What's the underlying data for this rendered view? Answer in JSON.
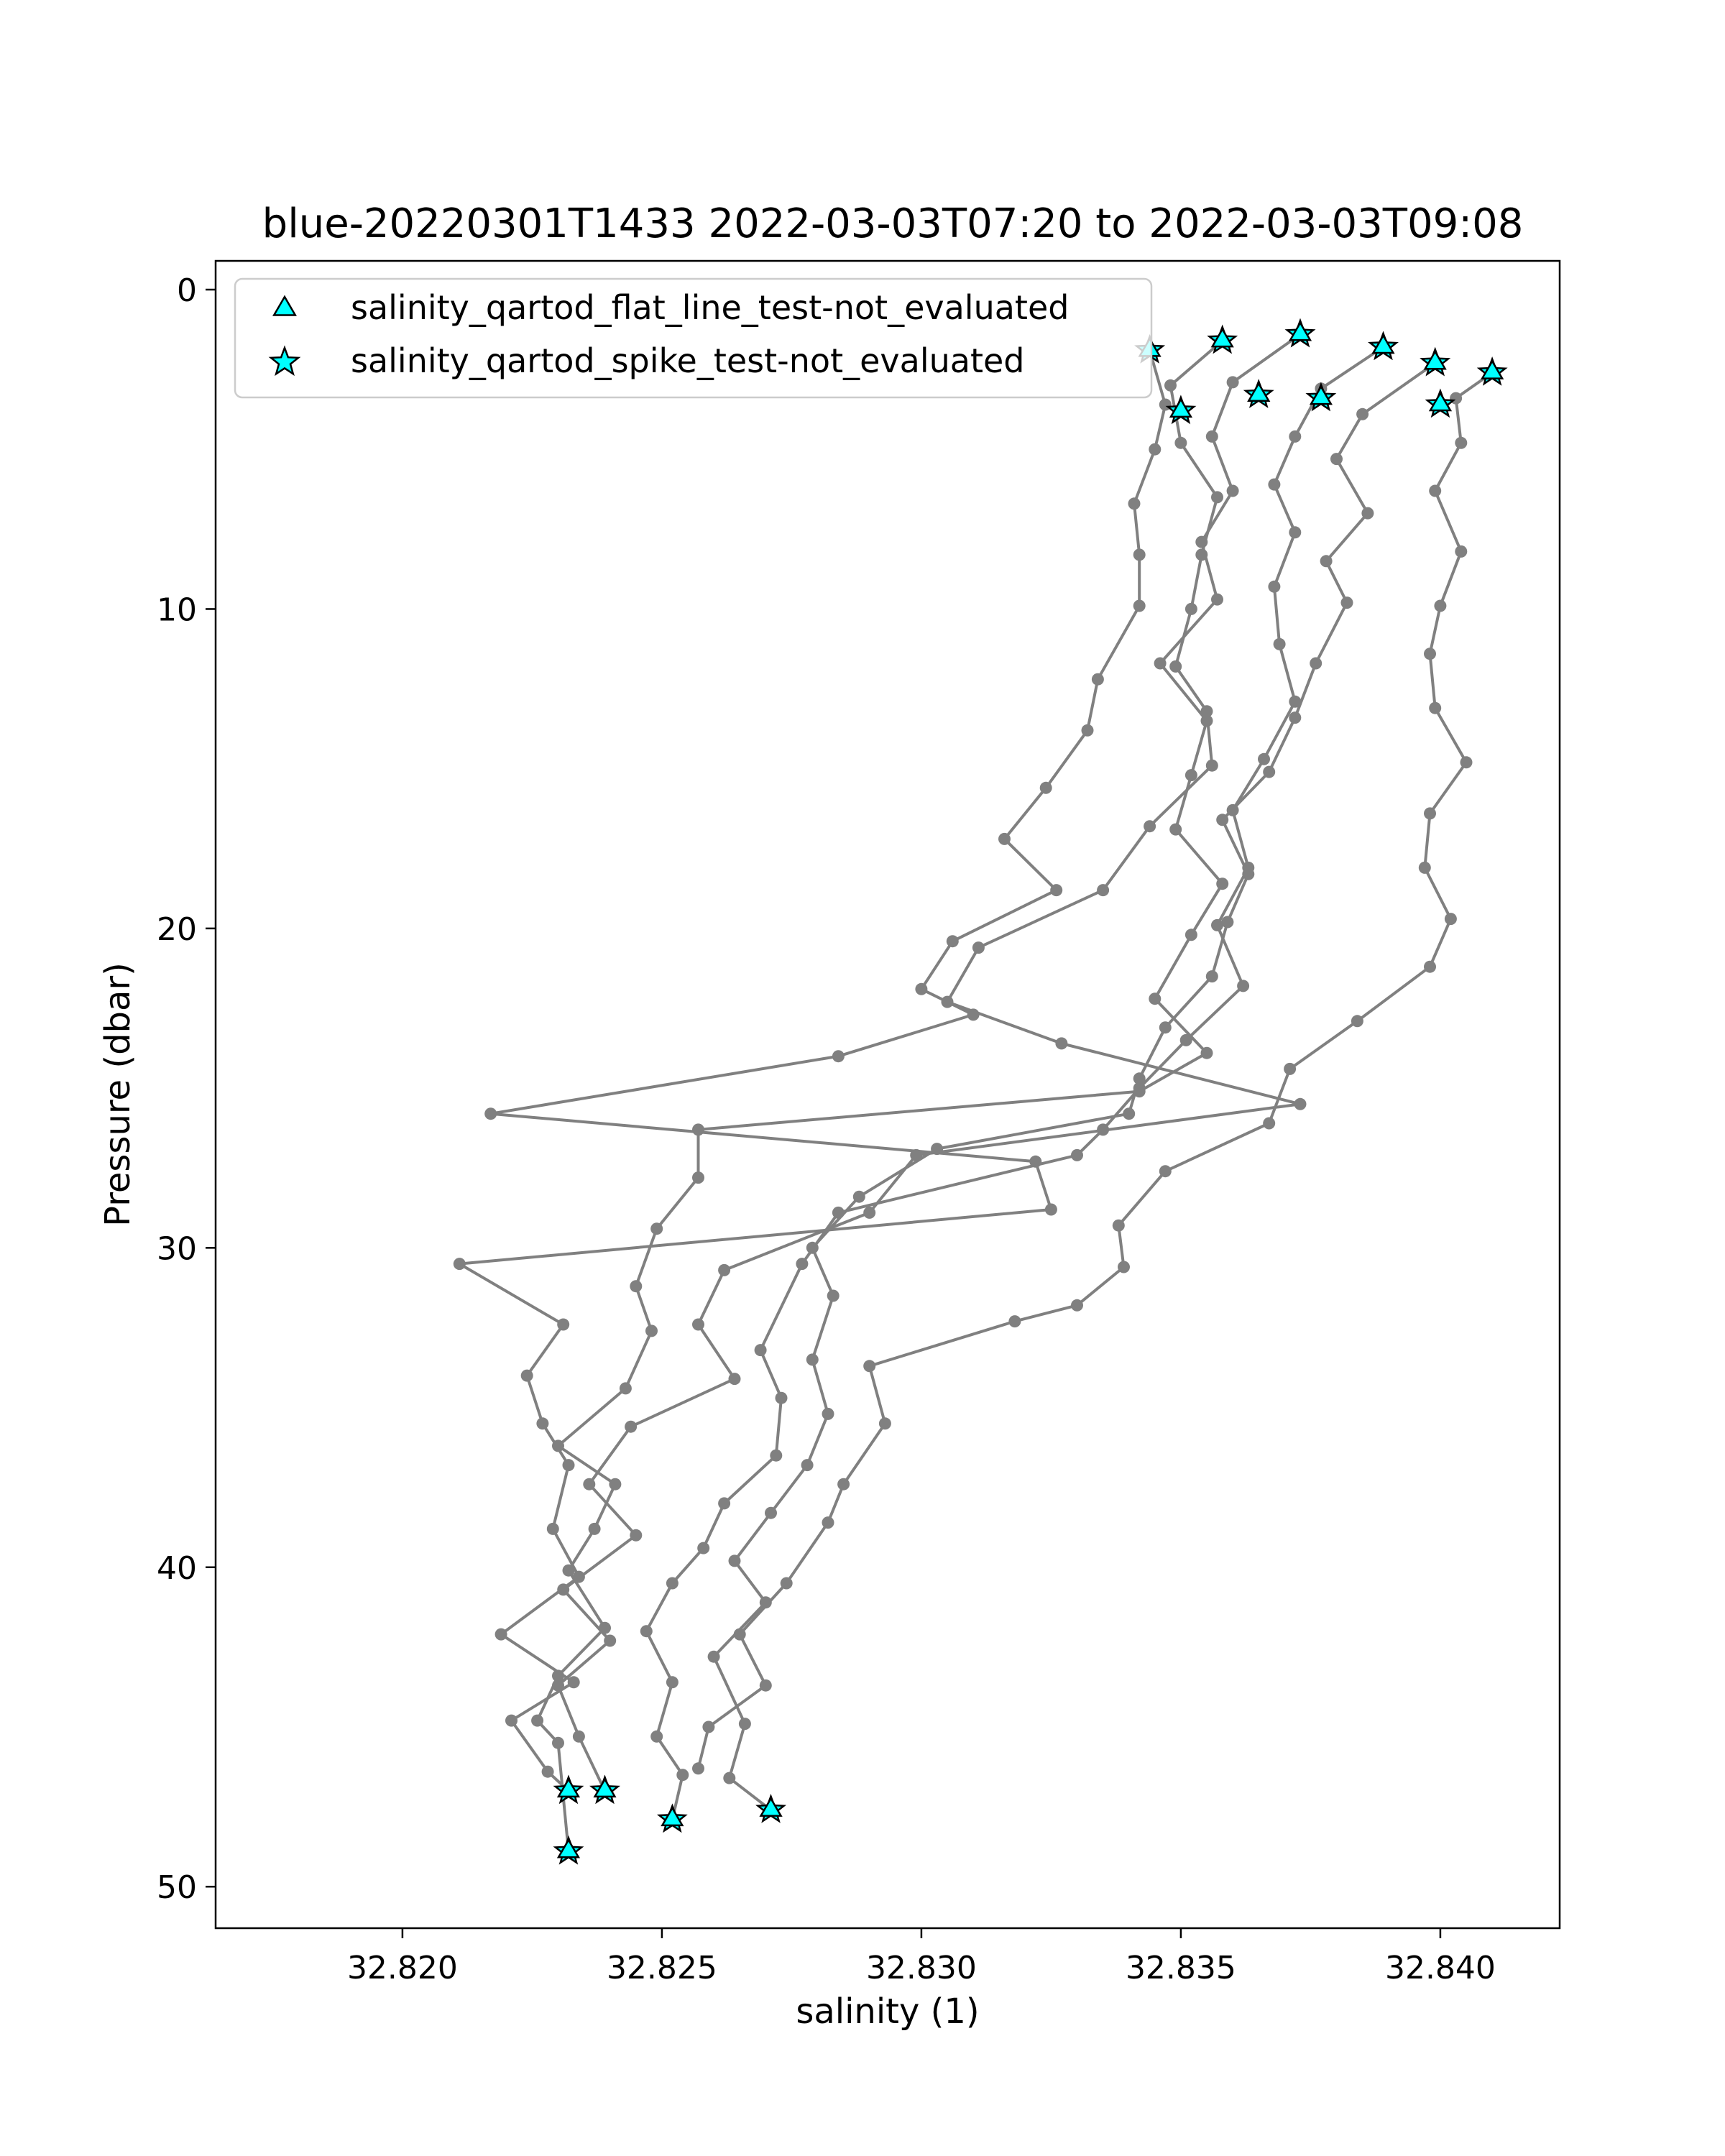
{
  "chart_data": {
    "type": "line",
    "title": "blue-20220301T1433 2022-03-03T07:20 to 2022-03-03T09:08",
    "xlabel": "salinity (1)",
    "ylabel": "Pressure (dbar)",
    "xlim": [
      32.8164,
      32.8423
    ],
    "ylim": [
      51.3,
      -0.9
    ],
    "y_inverted": true,
    "xticks": [
      32.82,
      32.825,
      32.83,
      32.835,
      32.84
    ],
    "xtick_labels": [
      "32.820",
      "32.825",
      "32.830",
      "32.835",
      "32.840"
    ],
    "yticks": [
      0,
      10,
      20,
      30,
      40,
      50
    ],
    "ytick_labels": [
      "0",
      "10",
      "20",
      "30",
      "40",
      "50"
    ],
    "grid": false,
    "legend_position": "top-left",
    "colors": {
      "line": "#808080",
      "marker_fill": "#00ffff",
      "marker_edge": "#000000"
    },
    "legend": [
      {
        "label": "salinity_qartod_flat_line_test-not_evaluated",
        "marker": "triangle"
      },
      {
        "label": "salinity_qartod_spike_test-not_evaluated",
        "marker": "star"
      }
    ],
    "series": [
      {
        "points": [
          [
            32.8344,
            1.9
          ],
          [
            32.8347,
            3.6
          ],
          [
            32.8345,
            5.0
          ],
          [
            32.8341,
            6.7
          ],
          [
            32.8342,
            8.3
          ],
          [
            32.8342,
            9.9
          ],
          [
            32.8334,
            12.2
          ],
          [
            32.8332,
            13.8
          ],
          [
            32.8324,
            15.6
          ],
          [
            32.8316,
            17.2
          ],
          [
            32.8326,
            18.8
          ],
          [
            32.8306,
            20.4
          ],
          [
            32.83,
            21.9
          ],
          [
            32.831,
            22.7
          ],
          [
            32.8284,
            24.0
          ],
          [
            32.8217,
            25.8
          ],
          [
            32.8322,
            27.3
          ],
          [
            32.8325,
            28.8
          ],
          [
            32.8211,
            30.5
          ],
          [
            32.8231,
            32.4
          ],
          [
            32.8224,
            34.0
          ],
          [
            32.8227,
            35.5
          ],
          [
            32.8232,
            36.8
          ],
          [
            32.8229,
            38.8
          ],
          [
            32.8234,
            40.3
          ],
          [
            32.8219,
            42.1
          ],
          [
            32.8233,
            43.6
          ],
          [
            32.8221,
            44.8
          ],
          [
            32.8228,
            46.4
          ],
          [
            32.8232,
            47.0
          ]
        ]
      },
      {
        "points": [
          [
            32.8358,
            1.6
          ],
          [
            32.8348,
            3.0
          ],
          [
            32.835,
            4.8
          ],
          [
            32.8357,
            6.5
          ],
          [
            32.8354,
            8.3
          ],
          [
            32.8352,
            10.0
          ],
          [
            32.8349,
            11.8
          ],
          [
            32.8355,
            13.2
          ],
          [
            32.8356,
            14.9
          ],
          [
            32.8344,
            16.8
          ],
          [
            32.8335,
            18.8
          ],
          [
            32.8311,
            20.6
          ],
          [
            32.8305,
            22.3
          ],
          [
            32.8327,
            23.6
          ],
          [
            32.8373,
            25.5
          ],
          [
            32.8299,
            27.1
          ],
          [
            32.829,
            28.9
          ],
          [
            32.8262,
            30.7
          ],
          [
            32.8257,
            32.4
          ],
          [
            32.8264,
            34.1
          ],
          [
            32.8244,
            35.6
          ],
          [
            32.8236,
            37.4
          ],
          [
            32.8245,
            39.0
          ],
          [
            32.8231,
            40.7
          ],
          [
            32.824,
            42.3
          ],
          [
            32.823,
            43.7
          ],
          [
            32.8234,
            45.3
          ],
          [
            32.8239,
            47.0
          ]
        ]
      },
      {
        "points": [
          [
            32.8373,
            1.4
          ],
          [
            32.836,
            2.9
          ],
          [
            32.8356,
            4.6
          ],
          [
            32.836,
            6.3
          ],
          [
            32.8354,
            7.9
          ],
          [
            32.8357,
            9.7
          ],
          [
            32.8346,
            11.7
          ],
          [
            32.8355,
            13.5
          ],
          [
            32.8352,
            15.2
          ],
          [
            32.8349,
            16.9
          ],
          [
            32.8358,
            18.6
          ],
          [
            32.8352,
            20.2
          ],
          [
            32.8345,
            22.2
          ],
          [
            32.8355,
            23.9
          ],
          [
            32.8342,
            25.1
          ],
          [
            32.8257,
            26.3
          ],
          [
            32.8257,
            27.8
          ],
          [
            32.8249,
            29.4
          ],
          [
            32.8245,
            31.2
          ],
          [
            32.8248,
            32.6
          ],
          [
            32.8243,
            34.4
          ],
          [
            32.823,
            36.2
          ],
          [
            32.8241,
            37.4
          ],
          [
            32.8237,
            38.8
          ],
          [
            32.8232,
            40.1
          ],
          [
            32.8239,
            41.9
          ],
          [
            32.823,
            43.4
          ],
          [
            32.8226,
            44.8
          ],
          [
            32.823,
            45.5
          ],
          [
            32.8232,
            48.9
          ]
        ]
      },
      {
        "points": [
          [
            32.8389,
            1.8
          ],
          [
            32.8377,
            3.1
          ],
          [
            32.8372,
            4.6
          ],
          [
            32.8368,
            6.1
          ],
          [
            32.8372,
            7.6
          ],
          [
            32.8368,
            9.3
          ],
          [
            32.8369,
            11.1
          ],
          [
            32.8372,
            12.9
          ],
          [
            32.8366,
            14.7
          ],
          [
            32.836,
            16.3
          ],
          [
            32.8363,
            18.1
          ],
          [
            32.8357,
            19.9
          ],
          [
            32.8362,
            21.8
          ],
          [
            32.8351,
            23.5
          ],
          [
            32.8342,
            25.0
          ],
          [
            32.8335,
            26.3
          ],
          [
            32.833,
            27.1
          ],
          [
            32.8284,
            28.9
          ],
          [
            32.8277,
            30.5
          ],
          [
            32.8269,
            33.2
          ],
          [
            32.8273,
            34.7
          ],
          [
            32.8272,
            36.5
          ],
          [
            32.8262,
            38.0
          ],
          [
            32.8258,
            39.4
          ],
          [
            32.8252,
            40.5
          ],
          [
            32.8247,
            42.0
          ],
          [
            32.8252,
            43.6
          ],
          [
            32.8249,
            45.3
          ],
          [
            32.8254,
            46.5
          ],
          [
            32.8252,
            47.9
          ]
        ]
      },
      {
        "points": [
          [
            32.8399,
            2.3
          ],
          [
            32.8385,
            3.9
          ],
          [
            32.838,
            5.3
          ],
          [
            32.8386,
            7.0
          ],
          [
            32.8378,
            8.5
          ],
          [
            32.8382,
            9.8
          ],
          [
            32.8376,
            11.7
          ],
          [
            32.8372,
            13.4
          ],
          [
            32.8367,
            15.1
          ],
          [
            32.8358,
            16.6
          ],
          [
            32.8363,
            18.3
          ],
          [
            32.8359,
            19.8
          ],
          [
            32.8356,
            21.5
          ],
          [
            32.8347,
            23.1
          ],
          [
            32.8342,
            24.7
          ],
          [
            32.834,
            25.8
          ],
          [
            32.8303,
            26.9
          ],
          [
            32.8288,
            28.4
          ],
          [
            32.8279,
            30.0
          ],
          [
            32.8283,
            31.5
          ],
          [
            32.8279,
            33.5
          ],
          [
            32.8282,
            35.2
          ],
          [
            32.8278,
            36.8
          ],
          [
            32.8271,
            38.3
          ],
          [
            32.8264,
            39.8
          ],
          [
            32.827,
            41.1
          ],
          [
            32.826,
            42.8
          ],
          [
            32.8266,
            44.9
          ],
          [
            32.8263,
            46.6
          ],
          [
            32.8271,
            47.6
          ]
        ]
      },
      {
        "points": [
          [
            32.841,
            2.6
          ],
          [
            32.8403,
            3.4
          ],
          [
            32.8404,
            4.8
          ],
          [
            32.8399,
            6.3
          ],
          [
            32.8404,
            8.2
          ],
          [
            32.84,
            9.9
          ],
          [
            32.8398,
            11.4
          ],
          [
            32.8399,
            13.1
          ],
          [
            32.8405,
            14.8
          ],
          [
            32.8398,
            16.4
          ],
          [
            32.8397,
            18.1
          ],
          [
            32.8402,
            19.7
          ],
          [
            32.8398,
            21.2
          ],
          [
            32.8384,
            22.9
          ],
          [
            32.8371,
            24.4
          ],
          [
            32.8367,
            26.1
          ],
          [
            32.8347,
            27.6
          ],
          [
            32.8338,
            29.3
          ],
          [
            32.8339,
            30.6
          ],
          [
            32.833,
            31.8
          ],
          [
            32.8318,
            32.3
          ],
          [
            32.829,
            33.7
          ],
          [
            32.8293,
            35.5
          ],
          [
            32.8285,
            37.4
          ],
          [
            32.8282,
            38.6
          ],
          [
            32.8274,
            40.5
          ],
          [
            32.8265,
            42.1
          ],
          [
            32.827,
            43.7
          ],
          [
            32.8259,
            45.0
          ],
          [
            32.8257,
            46.3
          ]
        ]
      }
    ],
    "markers": [
      {
        "kind": "star",
        "points": [
          [
            32.8344,
            1.9
          ],
          [
            32.8358,
            1.6
          ],
          [
            32.8373,
            1.4
          ],
          [
            32.8389,
            1.8
          ],
          [
            32.8399,
            2.3
          ],
          [
            32.841,
            2.6
          ],
          [
            32.835,
            3.8
          ],
          [
            32.8365,
            3.3
          ],
          [
            32.8377,
            3.4
          ],
          [
            32.84,
            3.6
          ],
          [
            32.8232,
            47.0
          ],
          [
            32.8239,
            47.0
          ],
          [
            32.8252,
            47.9
          ],
          [
            32.8271,
            47.6
          ],
          [
            32.8232,
            48.9
          ]
        ]
      },
      {
        "kind": "triangle",
        "points": [
          [
            32.8344,
            1.9
          ],
          [
            32.8358,
            1.6
          ],
          [
            32.8373,
            1.4
          ],
          [
            32.8389,
            1.8
          ],
          [
            32.8399,
            2.3
          ],
          [
            32.841,
            2.6
          ],
          [
            32.835,
            3.8
          ],
          [
            32.8365,
            3.3
          ],
          [
            32.8377,
            3.4
          ],
          [
            32.84,
            3.6
          ],
          [
            32.8232,
            47.0
          ],
          [
            32.8239,
            47.0
          ],
          [
            32.8252,
            47.9
          ],
          [
            32.8271,
            47.6
          ],
          [
            32.8232,
            48.9
          ]
        ]
      }
    ]
  }
}
